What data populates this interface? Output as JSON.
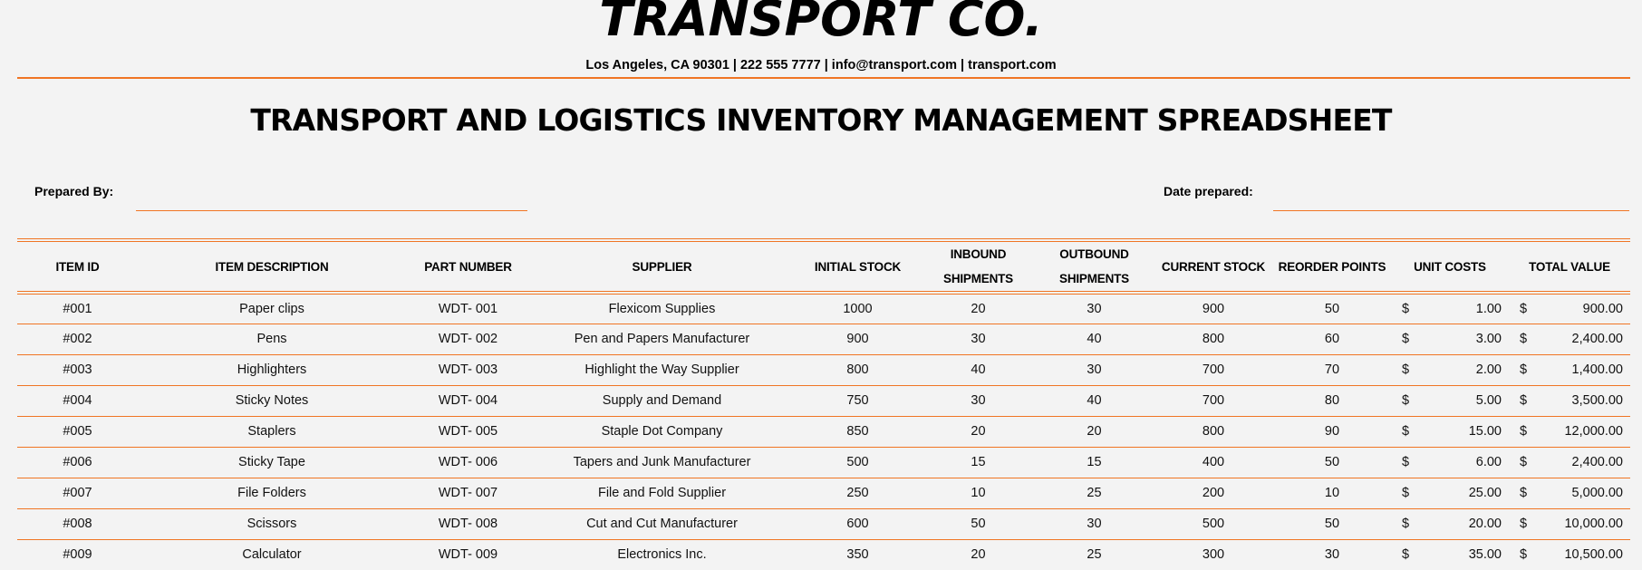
{
  "header": {
    "company_name": "TRANSPORT CO.",
    "contact_line": "Los Angeles, CA 90301 | 222 555 7777 | info@transport.com | transport.com"
  },
  "document": {
    "title": "TRANSPORT AND LOGISTICS INVENTORY MANAGEMENT SPREADSHEET"
  },
  "fields": {
    "prepared_by_label": "Prepared By:",
    "prepared_by_value": "",
    "date_prepared_label": "Date prepared:",
    "date_prepared_value": ""
  },
  "colors": {
    "accent": "#f07523",
    "background": "#f3f3f3",
    "text": "#000000"
  },
  "table": {
    "columns": [
      "ITEM ID",
      "ITEM DESCRIPTION",
      "PART NUMBER",
      "SUPPLIER",
      "INITIAL STOCK",
      "INBOUND SHIPMENTS",
      "OUTBOUND SHIPMENTS",
      "CURRENT STOCK",
      "REORDER POINTS",
      "UNIT COSTS",
      "TOTAL VALUE"
    ],
    "column_labels": {
      "item_id": "ITEM ID",
      "item_description": "ITEM DESCRIPTION",
      "part_number": "PART NUMBER",
      "supplier": "SUPPLIER",
      "initial_stock": "INITIAL STOCK",
      "inbound_line1": "INBOUND",
      "inbound_line2": "SHIPMENTS",
      "outbound_line1": "OUTBOUND",
      "outbound_line2": "SHIPMENTS",
      "current_stock": "CURRENT STOCK",
      "reorder_points": "REORDER POINTS",
      "unit_costs": "UNIT COSTS",
      "total_value": "TOTAL VALUE"
    },
    "currency_symbol": "$",
    "rows": [
      {
        "item_id": "#001",
        "description": "Paper clips",
        "part_number": "WDT- 001",
        "supplier": "Flexicom Supplies",
        "initial_stock": "1000",
        "inbound": "20",
        "outbound": "30",
        "current_stock": "900",
        "reorder_point": "50",
        "unit_cost": "1.00",
        "total_value": "900.00"
      },
      {
        "item_id": "#002",
        "description": "Pens",
        "part_number": "WDT- 002",
        "supplier": "Pen and Papers Manufacturer",
        "initial_stock": "900",
        "inbound": "30",
        "outbound": "40",
        "current_stock": "800",
        "reorder_point": "60",
        "unit_cost": "3.00",
        "total_value": "2,400.00"
      },
      {
        "item_id": "#003",
        "description": "Highlighters",
        "part_number": "WDT- 003",
        "supplier": "Highlight the Way Supplier",
        "initial_stock": "800",
        "inbound": "40",
        "outbound": "30",
        "current_stock": "700",
        "reorder_point": "70",
        "unit_cost": "2.00",
        "total_value": "1,400.00"
      },
      {
        "item_id": "#004",
        "description": "Sticky Notes",
        "part_number": "WDT- 004",
        "supplier": "Supply and Demand",
        "initial_stock": "750",
        "inbound": "30",
        "outbound": "40",
        "current_stock": "700",
        "reorder_point": "80",
        "unit_cost": "5.00",
        "total_value": "3,500.00"
      },
      {
        "item_id": "#005",
        "description": "Staplers",
        "part_number": "WDT- 005",
        "supplier": "Staple Dot Company",
        "initial_stock": "850",
        "inbound": "20",
        "outbound": "20",
        "current_stock": "800",
        "reorder_point": "90",
        "unit_cost": "15.00",
        "total_value": "12,000.00"
      },
      {
        "item_id": "#006",
        "description": "Sticky Tape",
        "part_number": "WDT- 006",
        "supplier": "Tapers and Junk Manufacturer",
        "initial_stock": "500",
        "inbound": "15",
        "outbound": "15",
        "current_stock": "400",
        "reorder_point": "50",
        "unit_cost": "6.00",
        "total_value": "2,400.00"
      },
      {
        "item_id": "#007",
        "description": "File Folders",
        "part_number": "WDT- 007",
        "supplier": "File and Fold Supplier",
        "initial_stock": "250",
        "inbound": "10",
        "outbound": "25",
        "current_stock": "200",
        "reorder_point": "10",
        "unit_cost": "25.00",
        "total_value": "5,000.00"
      },
      {
        "item_id": "#008",
        "description": "Scissors",
        "part_number": "WDT- 008",
        "supplier": "Cut and Cut Manufacturer",
        "initial_stock": "600",
        "inbound": "50",
        "outbound": "30",
        "current_stock": "500",
        "reorder_point": "50",
        "unit_cost": "20.00",
        "total_value": "10,000.00"
      },
      {
        "item_id": "#009",
        "description": "Calculator",
        "part_number": "WDT- 009",
        "supplier": "Electronics Inc.",
        "initial_stock": "350",
        "inbound": "20",
        "outbound": "25",
        "current_stock": "300",
        "reorder_point": "30",
        "unit_cost": "35.00",
        "total_value": "10,500.00"
      }
    ]
  }
}
